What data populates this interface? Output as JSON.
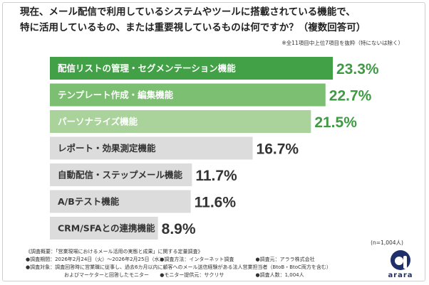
{
  "title_line1": "現在、メール配信で利用しているシステムやツールに搭載されている機能で、",
  "title_line2": "特に活用しているもの、または重要視しているものは何ですか？（複数回答可）",
  "note": "※全11項目中上位7項目を抜粋（特にないは除く）",
  "n_label": "(n=1,004人)",
  "footer": {
    "line1": "《調査概要：「営業現場におけるメール活用の実態と成果」に関する定量調査》",
    "period": "●調査期間：2026年2月24日（火）〜2026年2月25日（水）",
    "method": "●調査方法：インターネット調査",
    "org": "●調査元：アララ株式会社",
    "target": "●調査対象：調査回答時に営業職に従事し、過去6カ月以内に顧客へのメール送信経験がある法人営業担当者（BtoB・BtoC両方を含む）",
    "target2": "およびマーケターと回答したモニター",
    "provider": "●モニター提供元：サクリサ",
    "count": "●調査人数：1,004人"
  },
  "logo_text": "arara",
  "colors": {
    "bar_dark": "#42a146",
    "bar_mid": "#7cbf72",
    "bar_light": "#a9d39a",
    "bar_gray": "#dcdcdc",
    "value_green": "#3f9a44",
    "value_gray": "#333333",
    "logo_blue": "#1f2f6b"
  },
  "chart_data": {
    "type": "bar",
    "orientation": "horizontal",
    "categories": [
      "配信リストの管理・セグメンテーション機能",
      "テンプレート作成・編集機能",
      "パーソナライズ機能",
      "レポート・効果測定機能",
      "自動配信・ステップメール機能",
      "A/Bテスト機能",
      "CRM/SFAとの連携機能"
    ],
    "values": [
      23.3,
      22.7,
      21.5,
      16.7,
      11.7,
      11.6,
      8.9
    ],
    "value_labels": [
      "23.3%",
      "22.7%",
      "21.5%",
      "16.7%",
      "11.7%",
      "11.6%",
      "8.9%"
    ],
    "unit": "%",
    "xlim": [
      0,
      25
    ]
  }
}
